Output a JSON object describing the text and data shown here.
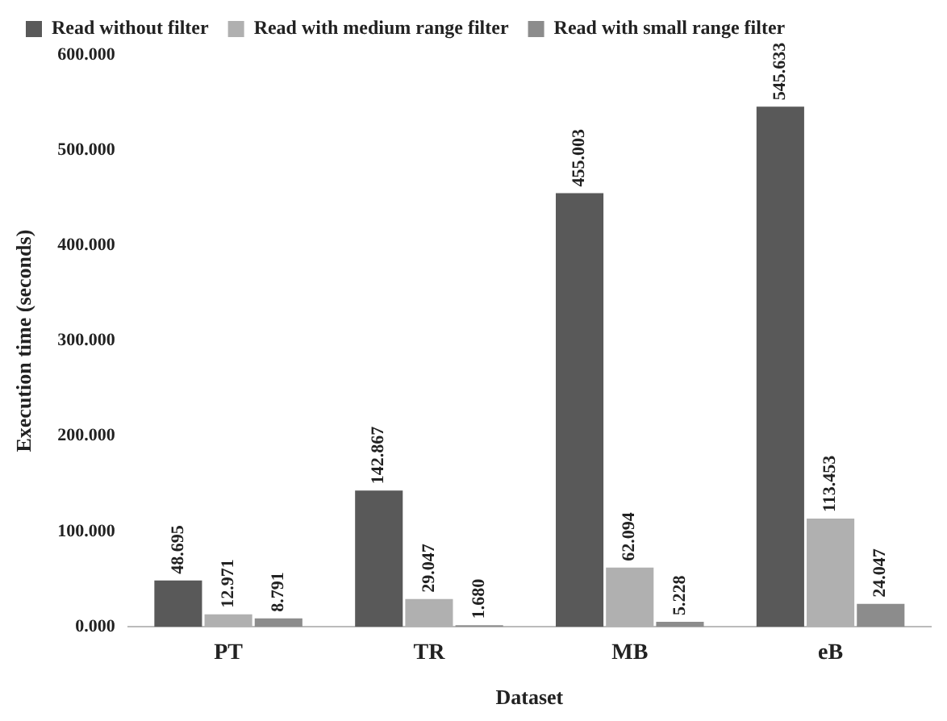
{
  "chart_data": {
    "type": "bar",
    "xlabel": "Dataset",
    "ylabel": "Execution time (seconds)",
    "categories": [
      "PT",
      "TR",
      "MB",
      "eB"
    ],
    "series": [
      {
        "name": "Read without filter",
        "color": "#595959",
        "values": [
          48.695,
          142.867,
          455.003,
          545.633
        ],
        "value_labels": [
          "48.695",
          "142.867",
          "455.003",
          "545.633"
        ]
      },
      {
        "name": "Read with medium range filter",
        "color": "#b0b0b0",
        "values": [
          12.971,
          29.047,
          62.094,
          113.453
        ],
        "value_labels": [
          "12.971",
          "29.047",
          "62.094",
          "113.453"
        ]
      },
      {
        "name": "Read with small range filter",
        "color": "#8c8c8c",
        "values": [
          8.791,
          1.68,
          5.228,
          24.047
        ],
        "value_labels": [
          "8.791",
          "1.680",
          "5.228",
          "24.047"
        ]
      }
    ],
    "ylim": [
      0,
      600
    ],
    "yticks": [
      {
        "value": 0,
        "label": "0.000"
      },
      {
        "value": 100,
        "label": "100.000"
      },
      {
        "value": 200,
        "label": "200.000"
      },
      {
        "value": 300,
        "label": "300.000"
      },
      {
        "value": 400,
        "label": "400.000"
      },
      {
        "value": 500,
        "label": "500.000"
      },
      {
        "value": 600,
        "label": "600.000"
      }
    ],
    "grid": false,
    "legend": "top left"
  }
}
